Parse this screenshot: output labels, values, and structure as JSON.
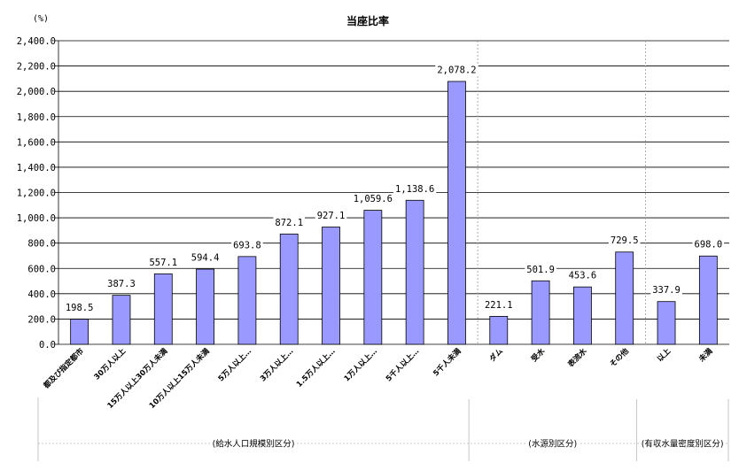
{
  "chart_data": {
    "type": "bar",
    "title": "当座比率",
    "ylabel": "(%)",
    "xlabel": "",
    "ylim": [
      0,
      2400
    ],
    "yticks": [
      0,
      200,
      400,
      600,
      800,
      1000,
      1200,
      1400,
      1600,
      1800,
      2000,
      2200,
      2400
    ],
    "grid": true,
    "legend": "none",
    "groups": [
      {
        "label": "(給水人口規模別区分)",
        "categories": [
          "都及び指定都市",
          "30万人以上",
          "15万人以上30万人未満",
          "10万人以上15万人未満",
          "5万人以上…",
          "3万人以上…",
          "1.5万人以上…",
          "1万人以上…",
          "5千人以上…",
          "5千人未満"
        ],
        "values": [
          198.5,
          387.3,
          557.1,
          594.4,
          693.8,
          872.1,
          927.1,
          1059.6,
          1138.6,
          2078.2
        ]
      },
      {
        "label": "(水源別区分)",
        "categories": [
          "ダム",
          "受水",
          "表流水",
          "その他"
        ],
        "values": [
          221.1,
          501.9,
          453.6,
          729.5
        ]
      },
      {
        "label": "(有収水量密度別区分)",
        "categories": [
          "以上",
          "未満"
        ],
        "values": [
          337.9,
          698.0
        ]
      }
    ]
  },
  "colors": {
    "bar": "#9999ff",
    "bar_outline": "#000000",
    "grid": "#000000",
    "separator": "#9a9a9a"
  }
}
